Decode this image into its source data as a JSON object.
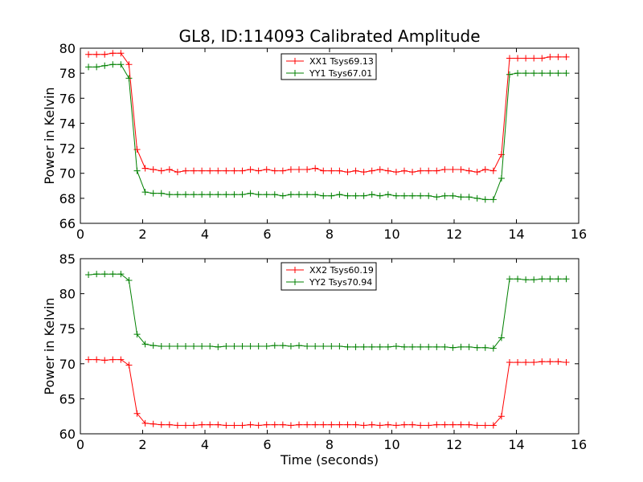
{
  "title": "GL8, ID:114093 Calibrated Amplitude",
  "chart_data": [
    {
      "type": "line",
      "title": "GL8, ID:114093 Calibrated Amplitude",
      "xlabel": "",
      "ylabel": "Power in Kelvin",
      "xlim": [
        0,
        16
      ],
      "ylim": [
        66,
        80
      ],
      "xticks": [
        0,
        2,
        4,
        6,
        8,
        10,
        12,
        14,
        16
      ],
      "yticks": [
        66,
        68,
        70,
        72,
        74,
        76,
        78,
        80
      ],
      "grid": false,
      "legend_position": "top-center",
      "x": [
        0.26,
        0.52,
        0.78,
        1.04,
        1.3,
        1.56,
        1.82,
        2.08,
        2.34,
        2.6,
        2.86,
        3.12,
        3.38,
        3.64,
        3.9,
        4.16,
        4.42,
        4.68,
        4.94,
        5.2,
        5.46,
        5.72,
        5.98,
        6.24,
        6.5,
        6.76,
        7.02,
        7.28,
        7.54,
        7.8,
        8.06,
        8.32,
        8.58,
        8.84,
        9.1,
        9.36,
        9.62,
        9.88,
        10.14,
        10.4,
        10.66,
        10.92,
        11.18,
        11.44,
        11.7,
        11.96,
        12.22,
        12.48,
        12.74,
        13.0,
        13.26,
        13.52,
        13.78,
        14.04,
        14.3,
        14.56,
        14.82,
        15.08,
        15.34,
        15.6
      ],
      "series": [
        {
          "name": "XX1 Tsys69.13",
          "color": "#ff0000",
          "values": [
            79.5,
            79.5,
            79.5,
            79.6,
            79.6,
            78.7,
            71.9,
            70.4,
            70.3,
            70.2,
            70.3,
            70.1,
            70.2,
            70.2,
            70.2,
            70.2,
            70.2,
            70.2,
            70.2,
            70.2,
            70.3,
            70.2,
            70.3,
            70.2,
            70.2,
            70.3,
            70.3,
            70.3,
            70.4,
            70.2,
            70.2,
            70.2,
            70.1,
            70.2,
            70.1,
            70.2,
            70.3,
            70.2,
            70.1,
            70.2,
            70.1,
            70.2,
            70.2,
            70.2,
            70.3,
            70.3,
            70.3,
            70.2,
            70.1,
            70.3,
            70.2,
            71.5,
            79.2,
            79.2,
            79.2,
            79.2,
            79.2,
            79.3,
            79.3,
            79.3
          ]
        },
        {
          "name": "YY1 Tsys67.01",
          "color": "#008000",
          "values": [
            78.5,
            78.5,
            78.6,
            78.7,
            78.7,
            77.6,
            70.2,
            68.5,
            68.4,
            68.4,
            68.3,
            68.3,
            68.3,
            68.3,
            68.3,
            68.3,
            68.3,
            68.3,
            68.3,
            68.3,
            68.4,
            68.3,
            68.3,
            68.3,
            68.2,
            68.3,
            68.3,
            68.3,
            68.3,
            68.2,
            68.2,
            68.3,
            68.2,
            68.2,
            68.2,
            68.3,
            68.2,
            68.3,
            68.2,
            68.2,
            68.2,
            68.2,
            68.2,
            68.1,
            68.2,
            68.2,
            68.1,
            68.1,
            68.0,
            67.9,
            67.9,
            69.6,
            77.9,
            78.0,
            78.0,
            78.0,
            78.0,
            78.0,
            78.0,
            78.0
          ]
        }
      ]
    },
    {
      "type": "line",
      "title": "",
      "xlabel": "Time (seconds)",
      "ylabel": "Power in Kelvin",
      "xlim": [
        0,
        16
      ],
      "ylim": [
        60,
        85
      ],
      "xticks": [
        0,
        2,
        4,
        6,
        8,
        10,
        12,
        14,
        16
      ],
      "yticks": [
        60,
        65,
        70,
        75,
        80,
        85
      ],
      "grid": false,
      "legend_position": "top-center",
      "x": [
        0.26,
        0.52,
        0.78,
        1.04,
        1.3,
        1.56,
        1.82,
        2.08,
        2.34,
        2.6,
        2.86,
        3.12,
        3.38,
        3.64,
        3.9,
        4.16,
        4.42,
        4.68,
        4.94,
        5.2,
        5.46,
        5.72,
        5.98,
        6.24,
        6.5,
        6.76,
        7.02,
        7.28,
        7.54,
        7.8,
        8.06,
        8.32,
        8.58,
        8.84,
        9.1,
        9.36,
        9.62,
        9.88,
        10.14,
        10.4,
        10.66,
        10.92,
        11.18,
        11.44,
        11.7,
        11.96,
        12.22,
        12.48,
        12.74,
        13.0,
        13.26,
        13.52,
        13.78,
        14.04,
        14.3,
        14.56,
        14.82,
        15.08,
        15.34,
        15.6
      ],
      "series": [
        {
          "name": "XX2 Tsys60.19",
          "color": "#ff0000",
          "values": [
            70.6,
            70.6,
            70.5,
            70.6,
            70.6,
            69.8,
            62.9,
            61.5,
            61.4,
            61.3,
            61.3,
            61.2,
            61.2,
            61.2,
            61.3,
            61.3,
            61.3,
            61.2,
            61.2,
            61.2,
            61.3,
            61.2,
            61.3,
            61.3,
            61.3,
            61.2,
            61.3,
            61.3,
            61.3,
            61.3,
            61.3,
            61.3,
            61.3,
            61.3,
            61.2,
            61.3,
            61.2,
            61.3,
            61.2,
            61.3,
            61.3,
            61.2,
            61.2,
            61.3,
            61.3,
            61.3,
            61.3,
            61.3,
            61.2,
            61.2,
            61.2,
            62.5,
            70.2,
            70.2,
            70.2,
            70.2,
            70.3,
            70.3,
            70.3,
            70.2
          ]
        },
        {
          "name": "YY2 Tsys70.94",
          "color": "#008000",
          "values": [
            82.7,
            82.8,
            82.8,
            82.8,
            82.8,
            81.9,
            74.2,
            72.8,
            72.6,
            72.5,
            72.5,
            72.5,
            72.5,
            72.5,
            72.5,
            72.5,
            72.4,
            72.5,
            72.5,
            72.5,
            72.5,
            72.5,
            72.5,
            72.6,
            72.6,
            72.5,
            72.6,
            72.5,
            72.5,
            72.5,
            72.5,
            72.5,
            72.4,
            72.4,
            72.4,
            72.4,
            72.4,
            72.4,
            72.5,
            72.4,
            72.4,
            72.4,
            72.4,
            72.4,
            72.4,
            72.3,
            72.4,
            72.4,
            72.3,
            72.3,
            72.2,
            73.7,
            82.1,
            82.1,
            82.0,
            82.0,
            82.1,
            82.1,
            82.1,
            82.1
          ]
        }
      ]
    }
  ]
}
